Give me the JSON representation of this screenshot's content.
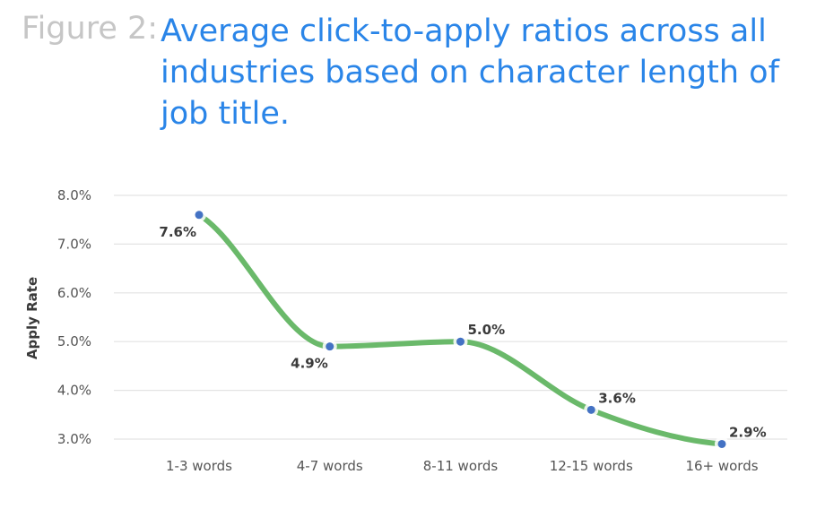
{
  "figure_label": "Figure 2:",
  "figure_title": "Average click-to-apply ratios across all industries based on character length of job title.",
  "colors": {
    "line": "#6ab96a",
    "marker": "#4472c4",
    "title": "#2a85e8",
    "label": "#c6c6c6",
    "grid": "#e3e3e3"
  },
  "chart_data": {
    "type": "line",
    "title": "Average click-to-apply ratios across all industries based on character length of job title.",
    "xlabel": "",
    "ylabel": "Apply Rate",
    "categories": [
      "1-3 words",
      "4-7 words",
      "8-11 words",
      "12-15 words",
      "16+ words"
    ],
    "series": [
      {
        "values": [
          7.6,
          4.9,
          5.0,
          3.6,
          2.9
        ],
        "labels": [
          "7.6%",
          "4.9%",
          "5.0%",
          "3.6%",
          "2.9%"
        ]
      }
    ],
    "ylim": [
      3.0,
      8.0
    ],
    "yticks": [
      "3.0%",
      "4.0%",
      "5.0%",
      "6.0%",
      "7.0%",
      "8.0%"
    ],
    "grid": true,
    "smooth": true,
    "legend": "none"
  }
}
